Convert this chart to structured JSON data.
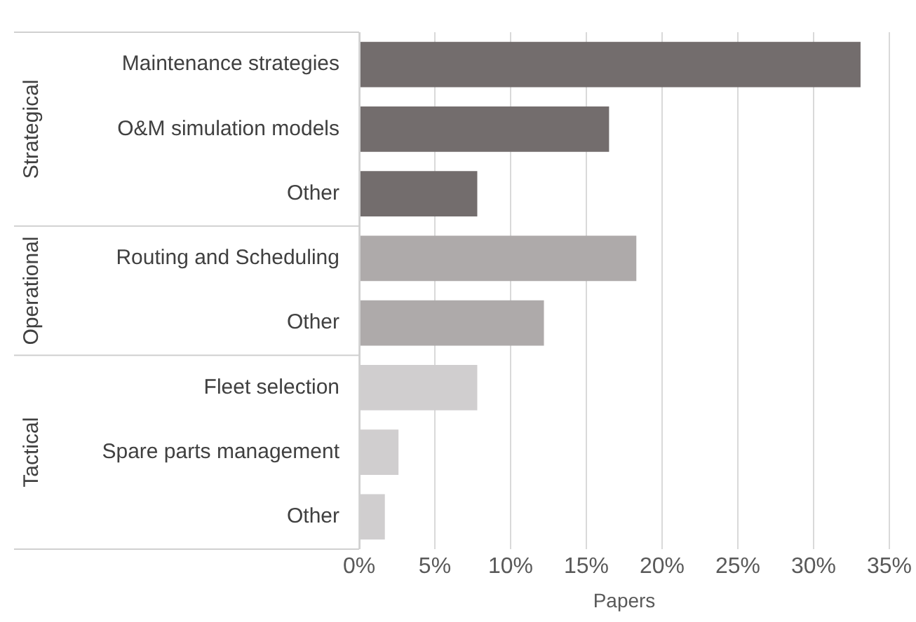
{
  "chart_data": {
    "type": "bar",
    "orientation": "horizontal",
    "xlabel": "Papers",
    "categories": [
      "Maintenance strategies",
      "O&M simulation models",
      "Other",
      "Routing and Scheduling",
      "Other",
      "Fleet selection",
      "Spare parts management",
      "Other"
    ],
    "series": [
      {
        "color": "#736d6d",
        "values": [
          33.1,
          16.5,
          7.8,
          null,
          null,
          null,
          null,
          null
        ]
      },
      {
        "color": "#aeaaaa",
        "values": [
          null,
          null,
          null,
          18.3,
          12.2,
          null,
          null,
          null
        ]
      },
      {
        "color": "#d0cecf",
        "values": [
          null,
          null,
          null,
          null,
          null,
          7.8,
          2.6,
          1.7
        ]
      }
    ],
    "xlim": [
      0,
      35
    ],
    "xticks": [
      {
        "value": 0,
        "label": "0%"
      },
      {
        "value": 5,
        "label": "5%"
      },
      {
        "value": 10,
        "label": "10%"
      },
      {
        "value": 15,
        "label": "15%"
      },
      {
        "value": 20,
        "label": "20%"
      },
      {
        "value": 25,
        "label": "25%"
      },
      {
        "value": 30,
        "label": "30%"
      },
      {
        "value": 35,
        "label": "35%"
      }
    ],
    "annotations": [
      "Strategical",
      "Operational",
      "Tactical"
    ],
    "grid": "x",
    "legend": false
  }
}
